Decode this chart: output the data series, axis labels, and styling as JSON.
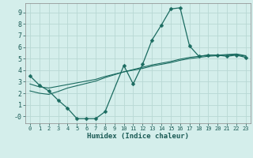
{
  "xlabel": "Humidex (Indice chaleur)",
  "background_color": "#d4eeeb",
  "grid_color": "#b8d8d4",
  "line_color": "#1a6b60",
  "xlim": [
    -0.5,
    23.5
  ],
  "ylim": [
    -0.6,
    9.8
  ],
  "xticks": [
    0,
    1,
    2,
    3,
    4,
    5,
    6,
    7,
    8,
    9,
    10,
    11,
    12,
    13,
    14,
    15,
    16,
    17,
    18,
    19,
    20,
    21,
    22,
    23
  ],
  "yticks": [
    0,
    1,
    2,
    3,
    4,
    5,
    6,
    7,
    8,
    9
  ],
  "ytick_labels": [
    "-0",
    "1",
    "2",
    "3",
    "4",
    "5",
    "6",
    "7",
    "8",
    "9"
  ],
  "curve1_x": [
    0,
    1,
    2,
    3,
    4,
    5,
    6,
    7,
    8,
    10,
    11,
    12,
    13,
    14,
    15,
    16,
    17,
    18,
    19,
    20,
    21,
    22,
    23
  ],
  "curve1_y": [
    3.5,
    2.7,
    2.2,
    1.4,
    0.7,
    -0.2,
    -0.2,
    -0.2,
    0.4,
    4.4,
    2.8,
    4.5,
    6.6,
    7.9,
    9.3,
    9.4,
    6.1,
    5.2,
    5.3,
    5.3,
    5.2,
    5.3,
    5.1
  ],
  "curve2_x": [
    0,
    1,
    2,
    3,
    4,
    5,
    6,
    7,
    8,
    9,
    10,
    11,
    12,
    13,
    14,
    15,
    16,
    17,
    18,
    19,
    20,
    21,
    22,
    23
  ],
  "curve2_y": [
    2.8,
    2.55,
    2.45,
    2.6,
    2.75,
    2.9,
    3.05,
    3.2,
    3.45,
    3.65,
    3.85,
    4.0,
    4.15,
    4.35,
    4.5,
    4.65,
    4.85,
    5.0,
    5.1,
    5.2,
    5.25,
    5.3,
    5.35,
    5.2
  ],
  "curve3_x": [
    0,
    1,
    2,
    3,
    4,
    5,
    6,
    7,
    8,
    9,
    10,
    11,
    12,
    13,
    14,
    15,
    16,
    17,
    18,
    19,
    20,
    21,
    22,
    23
  ],
  "curve3_y": [
    2.2,
    2.0,
    1.9,
    2.15,
    2.45,
    2.65,
    2.85,
    3.05,
    3.35,
    3.6,
    3.85,
    4.05,
    4.25,
    4.45,
    4.6,
    4.75,
    4.95,
    5.1,
    5.2,
    5.3,
    5.3,
    5.35,
    5.4,
    5.25
  ]
}
